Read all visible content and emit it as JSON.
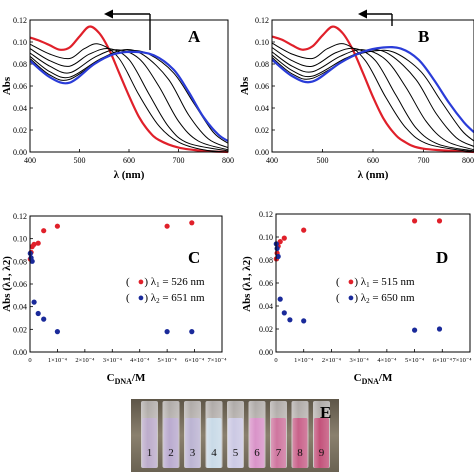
{
  "chart_data": [
    {
      "panel": "A",
      "type": "line",
      "xlabel": "λ (nm)",
      "ylabel": "Abs",
      "xlim": [
        400,
        800
      ],
      "ylim": [
        0,
        0.12
      ],
      "x_ticks": [
        "400",
        "500",
        "600",
        "700",
        "800"
      ],
      "y_ticks": [
        "0.00",
        "0.02",
        "0.04",
        "0.06",
        "0.08",
        "0.10",
        "0.12"
      ],
      "panel_label": "A",
      "colors": {
        "first": "#e0202a",
        "last": "#2a3cd8",
        "mid": "#000000"
      },
      "series": [
        {
          "color": "#e0202a",
          "points": [
            [
              400,
              0.104
            ],
            [
              420,
              0.101
            ],
            [
              440,
              0.097
            ],
            [
              460,
              0.093
            ],
            [
              480,
              0.095
            ],
            [
              500,
              0.105
            ],
            [
              520,
              0.114
            ],
            [
              540,
              0.108
            ],
            [
              560,
              0.093
            ],
            [
              580,
              0.072
            ],
            [
              600,
              0.051
            ],
            [
              620,
              0.032
            ],
            [
              640,
              0.019
            ],
            [
              660,
              0.011
            ],
            [
              700,
              0.004
            ],
            [
              750,
              0.001
            ],
            [
              800,
              0.0
            ]
          ]
        },
        {
          "color": "#000000",
          "points": [
            [
              400,
              0.098
            ],
            [
              440,
              0.089
            ],
            [
              480,
              0.085
            ],
            [
              510,
              0.094
            ],
            [
              540,
              0.098
            ],
            [
              580,
              0.085
            ],
            [
              620,
              0.052
            ],
            [
              660,
              0.024
            ],
            [
              700,
              0.009
            ],
            [
              750,
              0.002
            ],
            [
              800,
              0.0
            ]
          ]
        },
        {
          "color": "#000000",
          "points": [
            [
              400,
              0.094
            ],
            [
              440,
              0.083
            ],
            [
              480,
              0.078
            ],
            [
              520,
              0.089
            ],
            [
              560,
              0.094
            ],
            [
              600,
              0.084
            ],
            [
              640,
              0.053
            ],
            [
              680,
              0.023
            ],
            [
              720,
              0.008
            ],
            [
              800,
              0.001
            ]
          ]
        },
        {
          "color": "#000000",
          "points": [
            [
              400,
              0.09
            ],
            [
              440,
              0.078
            ],
            [
              480,
              0.072
            ],
            [
              530,
              0.086
            ],
            [
              575,
              0.093
            ],
            [
              620,
              0.085
            ],
            [
              660,
              0.06
            ],
            [
              700,
              0.028
            ],
            [
              740,
              0.01
            ],
            [
              800,
              0.002
            ]
          ]
        },
        {
          "color": "#000000",
          "points": [
            [
              400,
              0.087
            ],
            [
              440,
              0.073
            ],
            [
              480,
              0.068
            ],
            [
              540,
              0.084
            ],
            [
              590,
              0.093
            ],
            [
              630,
              0.088
            ],
            [
              680,
              0.066
            ],
            [
              720,
              0.034
            ],
            [
              760,
              0.012
            ],
            [
              800,
              0.004
            ]
          ]
        },
        {
          "color": "#000000",
          "points": [
            [
              400,
              0.085
            ],
            [
              440,
              0.07
            ],
            [
              480,
              0.066
            ],
            [
              550,
              0.086
            ],
            [
              600,
              0.092
            ],
            [
              640,
              0.089
            ],
            [
              690,
              0.072
            ],
            [
              730,
              0.045
            ],
            [
              770,
              0.018
            ],
            [
              800,
              0.008
            ]
          ]
        },
        {
          "color": "#2a3cd8",
          "points": [
            [
              400,
              0.083
            ],
            [
              440,
              0.068
            ],
            [
              480,
              0.063
            ],
            [
              530,
              0.08
            ],
            [
              570,
              0.089
            ],
            [
              610,
              0.091
            ],
            [
              650,
              0.088
            ],
            [
              690,
              0.075
            ],
            [
              720,
              0.055
            ],
            [
              750,
              0.032
            ],
            [
              780,
              0.016
            ],
            [
              800,
              0.01
            ]
          ]
        }
      ]
    },
    {
      "panel": "B",
      "type": "line",
      "xlabel": "λ (nm)",
      "ylabel": "Abs",
      "xlim": [
        400,
        800
      ],
      "ylim": [
        0,
        0.12
      ],
      "x_ticks": [
        "400",
        "500",
        "600",
        "700",
        "800"
      ],
      "y_ticks": [
        "0.00",
        "0.02",
        "0.04",
        "0.06",
        "0.08",
        "0.10",
        "0.12"
      ],
      "panel_label": "B",
      "colors": {
        "first": "#e0202a",
        "last": "#2a3cd8",
        "mid": "#000000"
      },
      "series": [
        {
          "color": "#e0202a",
          "points": [
            [
              400,
              0.105
            ],
            [
              420,
              0.102
            ],
            [
              440,
              0.097
            ],
            [
              460,
              0.093
            ],
            [
              480,
              0.096
            ],
            [
              500,
              0.106
            ],
            [
              520,
              0.114
            ],
            [
              540,
              0.108
            ],
            [
              560,
              0.093
            ],
            [
              580,
              0.072
            ],
            [
              600,
              0.05
            ],
            [
              620,
              0.031
            ],
            [
              640,
              0.018
            ],
            [
              660,
              0.01
            ],
            [
              700,
              0.003
            ],
            [
              800,
              0.0
            ]
          ]
        },
        {
          "color": "#000000",
          "points": [
            [
              400,
              0.099
            ],
            [
              440,
              0.089
            ],
            [
              480,
              0.085
            ],
            [
              510,
              0.094
            ],
            [
              545,
              0.098
            ],
            [
              585,
              0.083
            ],
            [
              625,
              0.05
            ],
            [
              665,
              0.022
            ],
            [
              710,
              0.007
            ],
            [
              800,
              0.0
            ]
          ]
        },
        {
          "color": "#000000",
          "points": [
            [
              400,
              0.095
            ],
            [
              440,
              0.083
            ],
            [
              480,
              0.078
            ],
            [
              525,
              0.09
            ],
            [
              565,
              0.094
            ],
            [
              605,
              0.083
            ],
            [
              645,
              0.052
            ],
            [
              685,
              0.022
            ],
            [
              730,
              0.007
            ],
            [
              800,
              0.001
            ]
          ]
        },
        {
          "color": "#000000",
          "points": [
            [
              400,
              0.091
            ],
            [
              440,
              0.078
            ],
            [
              480,
              0.073
            ],
            [
              535,
              0.087
            ],
            [
              580,
              0.093
            ],
            [
              625,
              0.084
            ],
            [
              665,
              0.059
            ],
            [
              705,
              0.028
            ],
            [
              745,
              0.01
            ],
            [
              800,
              0.002
            ]
          ]
        },
        {
          "color": "#000000",
          "points": [
            [
              400,
              0.088
            ],
            [
              440,
              0.074
            ],
            [
              480,
              0.069
            ],
            [
              545,
              0.085
            ],
            [
              595,
              0.093
            ],
            [
              635,
              0.088
            ],
            [
              685,
              0.066
            ],
            [
              725,
              0.035
            ],
            [
              765,
              0.013
            ],
            [
              800,
              0.005
            ]
          ]
        },
        {
          "color": "#000000",
          "points": [
            [
              400,
              0.086
            ],
            [
              440,
              0.071
            ],
            [
              480,
              0.067
            ],
            [
              555,
              0.086
            ],
            [
              605,
              0.092
            ],
            [
              645,
              0.09
            ],
            [
              695,
              0.073
            ],
            [
              735,
              0.046
            ],
            [
              775,
              0.02
            ],
            [
              800,
              0.01
            ]
          ]
        },
        {
          "color": "#2a3cd8",
          "points": [
            [
              400,
              0.084
            ],
            [
              440,
              0.069
            ],
            [
              480,
              0.064
            ],
            [
              535,
              0.081
            ],
            [
              580,
              0.091
            ],
            [
              620,
              0.095
            ],
            [
              655,
              0.094
            ],
            [
              690,
              0.084
            ],
            [
              720,
              0.066
            ],
            [
              750,
              0.045
            ],
            [
              780,
              0.027
            ],
            [
              800,
              0.018
            ]
          ]
        }
      ]
    },
    {
      "panel": "C",
      "type": "scatter",
      "xlabel": "C",
      "xlabel_sub": "DNA",
      "xlabel_suffix": "/M",
      "ylabel": "Abs (λ1, λ2)",
      "xlim": [
        0,
        0.0007
      ],
      "ylim": [
        0,
        0.12
      ],
      "x_ticks": [
        "0",
        "1×10⁻⁴",
        "2×10⁻⁴",
        "3×10⁻⁴",
        "4×10⁻⁴",
        "5×10⁻⁴",
        "6×10⁻⁴",
        "7×10⁻⁴"
      ],
      "y_ticks": [
        "0.00",
        "0.02",
        "0.04",
        "0.06",
        "0.08",
        "0.10",
        "0.12"
      ],
      "panel_label": "C",
      "series": [
        {
          "name": "λ1 = 526 nm",
          "color": "#e0202a",
          "points": [
            [
              1e-06,
              0.082
            ],
            [
              4e-06,
              0.088
            ],
            [
              8e-06,
              0.093
            ],
            [
              1.5e-05,
              0.095
            ],
            [
              3e-05,
              0.096
            ],
            [
              5e-05,
              0.107
            ],
            [
              0.0001,
              0.111
            ],
            [
              0.0005,
              0.111
            ],
            [
              0.00059,
              0.114
            ]
          ]
        },
        {
          "name": "λ2 = 651 nm",
          "color": "#1a2a9a",
          "points": [
            [
              1e-06,
              0.087
            ],
            [
              4e-06,
              0.083
            ],
            [
              8e-06,
              0.08
            ],
            [
              1.5e-05,
              0.044
            ],
            [
              3e-05,
              0.034
            ],
            [
              5e-05,
              0.029
            ],
            [
              0.0001,
              0.018
            ],
            [
              0.0005,
              0.018
            ],
            [
              0.00059,
              0.018
            ]
          ]
        }
      ],
      "legend_text": [
        "(",
        ") λ",
        "1",
        " = 526 nm",
        ") λ",
        "2",
        " = 651 nm"
      ]
    },
    {
      "panel": "D",
      "type": "scatter",
      "xlabel": "C",
      "xlabel_sub": "DNA",
      "xlabel_suffix": "/M",
      "ylabel": "Abs (λ1, λ2)",
      "xlim": [
        0,
        0.0007
      ],
      "ylim": [
        0,
        0.12
      ],
      "x_ticks": [
        "0",
        "1×10⁻⁴",
        "2×10⁻⁴",
        "3×10⁻⁴",
        "4×10⁻⁴",
        "5×10⁻⁴",
        "6×10⁻⁴",
        "7×10⁻⁴"
      ],
      "y_ticks": [
        "0.00",
        "0.02",
        "0.04",
        "0.06",
        "0.08",
        "0.10",
        "0.12"
      ],
      "panel_label": "D",
      "series": [
        {
          "name": "λ1 = 515 nm",
          "color": "#e0202a",
          "points": [
            [
              1e-06,
              0.081
            ],
            [
              4e-06,
              0.086
            ],
            [
              8e-06,
              0.092
            ],
            [
              1.5e-05,
              0.096
            ],
            [
              3e-05,
              0.099
            ],
            [
              0.0001,
              0.106
            ],
            [
              0.0005,
              0.114
            ],
            [
              0.00059,
              0.114
            ]
          ]
        },
        {
          "name": "λ2 = 650 nm",
          "color": "#1a2a9a",
          "points": [
            [
              1e-06,
              0.094
            ],
            [
              4e-06,
              0.09
            ],
            [
              8e-06,
              0.083
            ],
            [
              1.5e-05,
              0.046
            ],
            [
              3e-05,
              0.034
            ],
            [
              5e-05,
              0.028
            ],
            [
              0.0001,
              0.027
            ],
            [
              0.0005,
              0.019
            ],
            [
              0.00059,
              0.02
            ]
          ]
        }
      ],
      "legend_text": [
        "(",
        ") λ",
        "1",
        " = 515 nm",
        ") λ",
        "2",
        " = 650 nm"
      ]
    }
  ],
  "photo": {
    "label": "E",
    "vial_numbers": [
      "1",
      "2",
      "3",
      "4",
      "5",
      "6",
      "7",
      "8",
      "9"
    ],
    "vial_colors": [
      "#b9a8c8",
      "#b6a6cc",
      "#b8b0d0",
      "#c6d8e6",
      "#c9c6e2",
      "#d78ec6",
      "#cc6f9a",
      "#c65a84",
      "#c04a74"
    ],
    "background_color": "#7a6f5e"
  }
}
